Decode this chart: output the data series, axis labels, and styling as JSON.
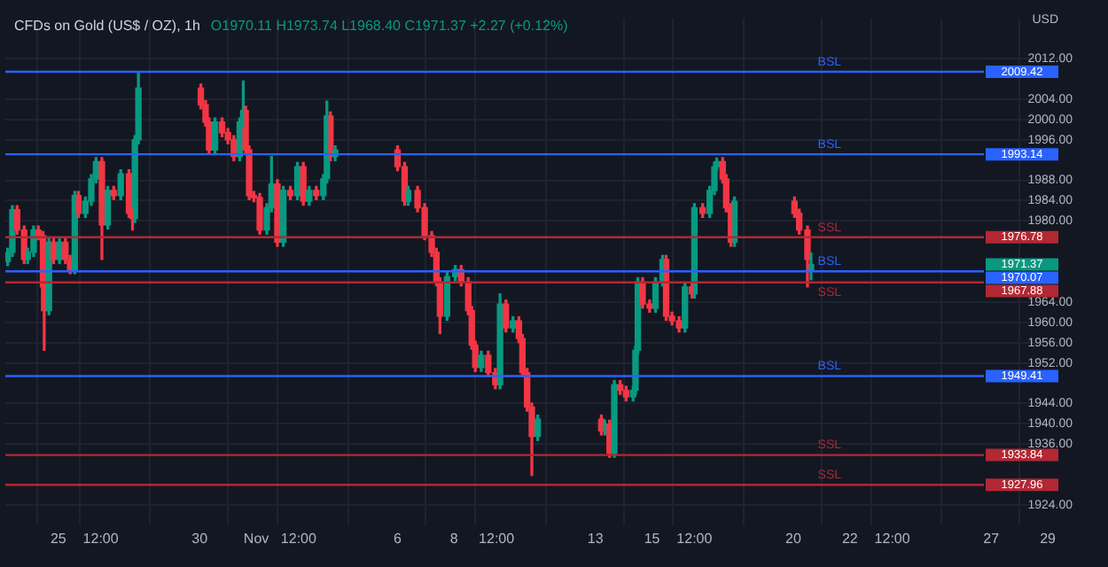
{
  "chart_data": {
    "type": "candlestick",
    "title": "CFDs on Gold (US$ / OZ), 1h",
    "subtitle": "O1970.11 H1973.74 L1968.40 C1971.37 +2.27 (+0.12%)",
    "ylabel": "USD",
    "x": [
      "--10-23T05:00",
      "--10-23T09:00",
      "--10-23T13:00",
      "--10-23T19:00",
      "--10-23T22:00",
      "--10-24T03:00",
      "--10-24T07:00",
      "--10-24T11:00",
      "--10-24T12:00",
      "--10-24T16:00",
      "--10-24T20:00",
      "--10-25T01:00",
      "--10-25T06:00",
      "--10-25T10:00",
      "--10-25T14:00",
      "--10-25T17:00",
      "--10-25T23:00",
      "--10-26T04:00",
      "--10-26T08:00",
      "--10-26T13:00",
      "--10-26T18:00",
      "--10-26T23:00",
      "--10-27T05:00",
      "--10-27T12:00",
      "--10-27T15:00",
      "--10-27T17:00",
      "--10-27T20:00",
      "--10-30T01:00",
      "--10-30T05:00",
      "--10-30T08:00",
      "--10-30T13:00",
      "--10-30T19:00",
      "--10-31T00:00",
      "--10-31T05:00",
      "--10-31T10:00",
      "--10-31T13:00",
      "--10-31T15:00",
      "--10-31T18:00",
      "--10-31T22:00",
      "--11-01T03:00",
      "--11-01T09:00",
      "--11-01T13:00",
      "--11-01T18:00",
      "--11-01T23:00",
      "--11-02T05:00",
      "--11-02T11:00",
      "--11-02T16:00",
      "--11-02T21:00",
      "--11-03T03:00",
      "--11-03T09:00",
      "--11-03T12:00",
      "--11-03T15:00",
      "--11-03T19:00",
      "--11-06T00:00",
      "--11-06T06:00",
      "--11-06T09:00",
      "--11-06T17:00",
      "--11-06T23:00",
      "--11-07T05:00",
      "--11-07T09:00",
      "--11-07T12:00",
      "--11-07T18:00",
      "--11-08T01:00",
      "--11-08T06:00",
      "--11-08T12:00",
      "--11-08T15:00",
      "--11-08T18:00",
      "--11-08T23:00",
      "--11-09T05:00",
      "--11-09T11:00",
      "--11-09T15:00",
      "--11-09T20:00",
      "--11-10T02:00",
      "--11-10T07:00",
      "--11-10T10:00",
      "--11-10T14:00",
      "--11-10T18:00",
      "--11-10T23:00",
      "--11-13T05:00",
      "--11-13T08:00",
      "--11-13T12:00",
      "--11-13T16:00",
      "--11-13T21:00",
      "--11-14T02:00",
      "--11-14T08:00",
      "--11-14T10:00",
      "--11-14T12:00",
      "--11-14T16:00",
      "--11-14T22:00",
      "--11-15T03:00",
      "--11-15T09:00",
      "--11-15T12:00",
      "--11-15T17:00",
      "--11-15T23:00",
      "--11-16T04:00",
      "--11-16T10:00",
      "--11-16T12:00",
      "--11-16T19:00",
      "--11-17T01:00",
      "--11-17T05:00",
      "--11-17T07:00",
      "--11-17T12:00",
      "--11-17T15:00",
      "--11-17T19:00",
      "--11-17T22:00",
      "--11-20T01:00",
      "--11-20T05:00",
      "--11-20T12:00",
      "--11-20T15:00"
    ],
    "ohlc": [
      [
        1972.0,
        1974.6,
        1971.2,
        1973.8
      ],
      [
        1973.8,
        1983.0,
        1973.0,
        1982.2
      ],
      [
        1982.2,
        1983.0,
        1977.4,
        1978.2
      ],
      [
        1978.2,
        1979.0,
        1971.6,
        1972.4
      ],
      [
        1972.4,
        1974.6,
        1971.6,
        1973.8
      ],
      [
        1973.8,
        1979.0,
        1973.0,
        1978.2
      ],
      [
        1978.2,
        1979.0,
        1976.3,
        1977.1
      ],
      [
        1977.1,
        1977.9,
        1966.2,
        1967.0
      ],
      [
        1967.0,
        1967.8,
        1954.5,
        1962.3
      ],
      [
        1962.3,
        1976.6,
        1961.5,
        1975.8
      ],
      [
        1975.8,
        1976.6,
        1971.6,
        1972.4
      ],
      [
        1972.4,
        1976.6,
        1971.6,
        1975.8
      ],
      [
        1975.8,
        1976.6,
        1971.6,
        1972.4
      ],
      [
        1972.4,
        1973.2,
        1969.6,
        1970.4
      ],
      [
        1970.4,
        1985.8,
        1969.6,
        1985.0
      ],
      [
        1985.0,
        1985.8,
        1980.7,
        1981.5
      ],
      [
        1981.5,
        1984.7,
        1980.7,
        1983.9
      ],
      [
        1983.9,
        1989.1,
        1983.1,
        1988.3
      ],
      [
        1988.3,
        1992.5,
        1987.5,
        1991.7
      ],
      [
        1991.7,
        1992.5,
        1972.4,
        1979.2
      ],
      [
        1979.2,
        1986.8,
        1978.4,
        1986.0
      ],
      [
        1986.0,
        1986.8,
        1984.2,
        1985.0
      ],
      [
        1985.0,
        1990.1,
        1984.2,
        1989.3
      ],
      [
        1989.3,
        1990.1,
        1980.7,
        1981.5
      ],
      [
        1981.5,
        1982.3,
        1978.2,
        1980.5
      ],
      [
        1980.5,
        1996.8,
        1979.7,
        1996.0
      ],
      [
        1996.0,
        2009.3,
        1995.2,
        2006.2
      ],
      [
        2006.2,
        2007.0,
        2002.1,
        2002.9
      ],
      [
        2002.9,
        2003.7,
        1998.7,
        1999.5
      ],
      [
        1999.5,
        2000.3,
        1993.2,
        1994.0
      ],
      [
        1994.0,
        2000.3,
        1993.2,
        1999.5
      ],
      [
        1999.5,
        2000.3,
        1996.6,
        1997.4
      ],
      [
        1997.4,
        1998.2,
        1995.2,
        1996.0
      ],
      [
        1996.0,
        1996.8,
        1991.9,
        1992.7
      ],
      [
        1992.7,
        2000.3,
        1991.9,
        1999.5
      ],
      [
        1999.5,
        2007.6,
        1998.7,
        2001.8
      ],
      [
        2001.8,
        2002.6,
        1993.2,
        1994.0
      ],
      [
        1994.0,
        1994.8,
        1984.2,
        1985.0
      ],
      [
        1985.0,
        1985.8,
        1983.8,
        1984.6
      ],
      [
        1984.6,
        1985.4,
        1977.4,
        1978.2
      ],
      [
        1978.2,
        1983.4,
        1977.4,
        1982.6
      ],
      [
        1982.6,
        1992.7,
        1981.8,
        1987.3
      ],
      [
        1987.3,
        1988.1,
        1975.0,
        1975.8
      ],
      [
        1975.8,
        1986.8,
        1975.0,
        1986.0
      ],
      [
        1986.0,
        1986.8,
        1984.2,
        1985.0
      ],
      [
        1985.0,
        1991.5,
        1984.2,
        1990.7
      ],
      [
        1990.7,
        1991.5,
        1983.1,
        1983.9
      ],
      [
        1983.9,
        1986.8,
        1983.1,
        1986.0
      ],
      [
        1986.0,
        1986.8,
        1984.2,
        1985.0
      ],
      [
        1985.0,
        1989.1,
        1984.2,
        1988.3
      ],
      [
        1988.3,
        2003.6,
        1987.5,
        2000.7
      ],
      [
        2000.7,
        2001.5,
        1991.9,
        1992.7
      ],
      [
        1992.7,
        1994.8,
        1991.9,
        1994.0
      ],
      [
        1994.0,
        1994.8,
        1989.9,
        1990.7
      ],
      [
        1990.7,
        1991.5,
        1983.1,
        1983.9
      ],
      [
        1983.9,
        1986.8,
        1983.1,
        1986.0
      ],
      [
        1986.0,
        1986.8,
        1981.8,
        1982.6
      ],
      [
        1982.6,
        1983.4,
        1976.3,
        1977.1
      ],
      [
        1977.1,
        1977.9,
        1973.0,
        1973.8
      ],
      [
        1973.8,
        1974.6,
        1967.2,
        1968.0
      ],
      [
        1968.0,
        1968.8,
        1957.8,
        1961.2
      ],
      [
        1961.2,
        1969.8,
        1960.4,
        1969.0
      ],
      [
        1969.0,
        1971.2,
        1968.2,
        1970.4
      ],
      [
        1970.4,
        1971.2,
        1967.2,
        1968.0
      ],
      [
        1968.0,
        1968.8,
        1961.5,
        1962.3
      ],
      [
        1962.3,
        1963.1,
        1954.7,
        1955.5
      ],
      [
        1955.5,
        1956.3,
        1950.3,
        1951.1
      ],
      [
        1951.1,
        1954.3,
        1950.3,
        1953.5
      ],
      [
        1953.5,
        1954.3,
        1949.3,
        1950.1
      ],
      [
        1950.1,
        1950.9,
        1946.9,
        1947.7
      ],
      [
        1947.7,
        1965.6,
        1946.9,
        1963.6
      ],
      [
        1963.6,
        1964.4,
        1958.1,
        1958.9
      ],
      [
        1958.9,
        1961.1,
        1958.1,
        1960.3
      ],
      [
        1960.3,
        1961.1,
        1956.0,
        1956.8
      ],
      [
        1956.8,
        1957.6,
        1949.3,
        1950.1
      ],
      [
        1950.1,
        1950.9,
        1942.5,
        1943.3
      ],
      [
        1943.3,
        1944.1,
        1929.8,
        1937.5
      ],
      [
        1937.5,
        1941.7,
        1936.7,
        1940.9
      ],
      [
        1940.9,
        1941.7,
        1937.8,
        1938.6
      ],
      [
        1938.6,
        1940.7,
        1937.8,
        1939.9
      ],
      [
        1939.9,
        1940.7,
        1933.4,
        1934.2
      ],
      [
        1934.2,
        1948.5,
        1933.4,
        1947.7
      ],
      [
        1947.7,
        1948.5,
        1945.8,
        1946.6
      ],
      [
        1946.6,
        1947.4,
        1944.5,
        1945.3
      ],
      [
        1945.3,
        1947.4,
        1944.5,
        1946.6
      ],
      [
        1946.6,
        1955.3,
        1945.8,
        1954.5
      ],
      [
        1954.5,
        1968.8,
        1953.7,
        1968.0
      ],
      [
        1968.0,
        1968.8,
        1962.8,
        1963.6
      ],
      [
        1963.6,
        1964.4,
        1962.0,
        1962.8
      ],
      [
        1962.8,
        1968.8,
        1962.0,
        1968.0
      ],
      [
        1968.0,
        1973.2,
        1967.2,
        1972.4
      ],
      [
        1972.4,
        1973.2,
        1960.4,
        1961.2
      ],
      [
        1961.2,
        1962.0,
        1959.5,
        1960.3
      ],
      [
        1960.3,
        1961.1,
        1958.1,
        1958.9
      ],
      [
        1958.9,
        1967.8,
        1958.1,
        1967.0
      ],
      [
        1967.0,
        1967.8,
        1964.8,
        1965.6
      ],
      [
        1965.6,
        1983.4,
        1964.8,
        1982.6
      ],
      [
        1982.6,
        1983.4,
        1980.7,
        1981.5
      ],
      [
        1981.5,
        1986.8,
        1980.7,
        1986.0
      ],
      [
        1986.0,
        1991.5,
        1985.2,
        1990.7
      ],
      [
        1990.7,
        1992.4,
        1989.9,
        1991.7
      ],
      [
        1991.7,
        1992.5,
        1987.5,
        1988.3
      ],
      [
        1988.3,
        1989.1,
        1981.8,
        1982.6
      ],
      [
        1982.6,
        1983.4,
        1975.0,
        1975.8
      ],
      [
        1975.8,
        1984.7,
        1975.0,
        1983.9
      ],
      [
        1983.9,
        1984.7,
        1980.7,
        1981.5
      ],
      [
        1981.5,
        1982.3,
        1977.4,
        1978.2
      ],
      [
        1978.2,
        1979.0,
        1967.0,
        1972.4
      ],
      [
        1970.1,
        1973.7,
        1968.4,
        1971.4
      ]
    ],
    "colors": [
      "#089981",
      "#089981",
      "#f23645",
      "#f23645",
      "#089981",
      "#089981",
      "#f23645",
      "#f23645",
      "#f23645",
      "#089981",
      "#f23645",
      "#089981",
      "#f23645",
      "#f23645",
      "#089981",
      "#f23645",
      "#089981",
      "#089981",
      "#089981",
      "#f23645",
      "#089981",
      "#f23645",
      "#089981",
      "#f23645",
      "#f23645",
      "#089981",
      "#089981",
      "#f23645",
      "#f23645",
      "#f23645",
      "#089981",
      "#f23645",
      "#f23645",
      "#f23645",
      "#089981",
      "#089981",
      "#f23645",
      "#f23645",
      "#f23645",
      "#f23645",
      "#089981",
      "#089981",
      "#f23645",
      "#089981",
      "#f23645",
      "#089981",
      "#f23645",
      "#089981",
      "#f23645",
      "#089981",
      "#089981",
      "#f23645",
      "#089981",
      "#f23645",
      "#f23645",
      "#089981",
      "#f23645",
      "#f23645",
      "#f23645",
      "#f23645",
      "#f23645",
      "#089981",
      "#089981",
      "#f23645",
      "#f23645",
      "#f23645",
      "#f23645",
      "#089981",
      "#f23645",
      "#f23645",
      "#089981",
      "#f23645",
      "#089981",
      "#f23645",
      "#f23645",
      "#f23645",
      "#f23645",
      "#089981",
      "#f23645",
      "#089981",
      "#f23645",
      "#089981",
      "#f23645",
      "#f23645",
      "#089981",
      "#089981",
      "#089981",
      "#f23645",
      "#f23645",
      "#089981",
      "#089981",
      "#f23645",
      "#f23645",
      "#f23645",
      "#089981",
      "#f23645",
      "#089981",
      "#f23645",
      "#089981",
      "#089981",
      "#089981",
      "#f23645",
      "#f23645",
      "#f23645",
      "#089981",
      "#f23645",
      "#f23645",
      "#f23645",
      "#089981"
    ],
    "xlim": [
      "--10-23T03:00",
      "--11-29T12:00"
    ],
    "xticks": [
      {
        "value": "--10-25",
        "label": "25"
      },
      {
        "value": "--10-26T12:00",
        "label": "12:00"
      },
      {
        "value": "--10-30",
        "label": "30"
      },
      {
        "value": "--11-01",
        "label": "Nov"
      },
      {
        "value": "--11-02T12:00",
        "label": "12:00"
      },
      {
        "value": "--11-06",
        "label": "6"
      },
      {
        "value": "--11-08",
        "label": "8"
      },
      {
        "value": "--11-09T12:00",
        "label": "12:00"
      },
      {
        "value": "--11-13",
        "label": "13"
      },
      {
        "value": "--11-15",
        "label": "15"
      },
      {
        "value": "--11-16T12:00",
        "label": "12:00"
      },
      {
        "value": "--11-20",
        "label": "20"
      },
      {
        "value": "--11-22",
        "label": "22"
      },
      {
        "value": "--11-23T12:00",
        "label": "12:00"
      },
      {
        "value": "--11-27",
        "label": "27"
      },
      {
        "value": "--11-29",
        "label": "29"
      }
    ],
    "annotations": [
      "2009.42",
      "1993.14",
      "1976.78",
      "1971.37",
      "1970.07",
      "1967.88",
      "1949.41",
      "1933.84",
      "1927.96"
    ],
    "ylim": [
      1920,
      2020
    ],
    "yticks": [
      {
        "value": 2012,
        "label": "2012.00"
      },
      {
        "value": 2004,
        "label": "2004.00"
      },
      {
        "value": 2000,
        "label": "2000.00"
      },
      {
        "value": 1996,
        "label": "1996.00"
      },
      {
        "value": 1988,
        "label": "1988.00"
      },
      {
        "value": 1984,
        "label": "1984.00"
      },
      {
        "value": 1980,
        "label": "1980.00"
      },
      {
        "value": 1964,
        "label": "1964.00"
      },
      {
        "value": 1960,
        "label": "1960.00"
      },
      {
        "value": 1956,
        "label": "1956.00"
      },
      {
        "value": 1952,
        "label": "1952.00"
      },
      {
        "value": 1944,
        "label": "1944.00"
      },
      {
        "value": 1940,
        "label": "1940.00"
      },
      {
        "value": 1936,
        "label": "1936.00"
      },
      {
        "value": 1924,
        "label": "1924.00"
      }
    ],
    "grid": true,
    "ref_lines": [
      {
        "axis": "y",
        "value": 2009.42,
        "label": "BSL",
        "color": "#2962ff"
      },
      {
        "axis": "y",
        "value": 1993.14,
        "label": "BSL",
        "color": "#2962ff"
      },
      {
        "axis": "y",
        "value": 1976.78,
        "label": "SSL",
        "color": "#b22833"
      },
      {
        "axis": "y",
        "value": 1970.07,
        "label": "BSL",
        "color": "#2962ff"
      },
      {
        "axis": "y",
        "value": 1967.88,
        "label": "SSL",
        "color": "#b22833"
      },
      {
        "axis": "y",
        "value": 1949.41,
        "label": "BSL",
        "color": "#2962ff"
      },
      {
        "axis": "y",
        "value": 1933.84,
        "label": "SSL",
        "color": "#b22833"
      },
      {
        "axis": "y",
        "value": 1927.96,
        "label": "SSL",
        "color": "#b22833"
      }
    ]
  }
}
